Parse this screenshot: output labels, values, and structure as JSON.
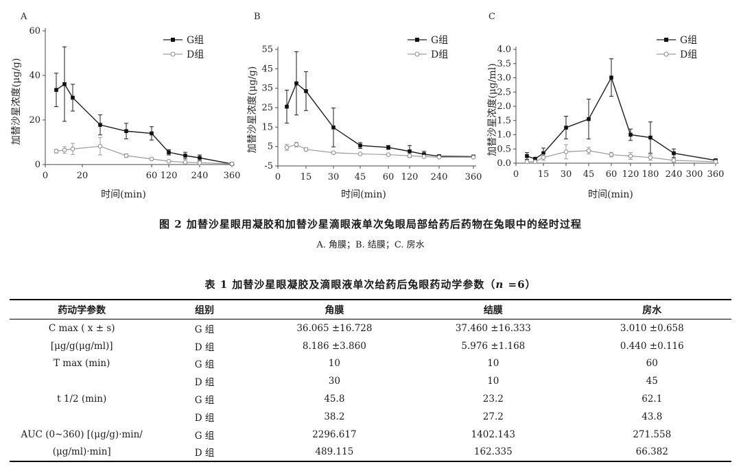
{
  "chart_data": [
    {
      "type": "line",
      "panel": "A",
      "ylabel": "加替沙星浓度(μg/g)",
      "xlabel": "时间(min)",
      "x_tick_labels": [
        "0",
        "20",
        "60",
        "120",
        "240",
        "360"
      ],
      "y_ticks": [
        0,
        20,
        40,
        60
      ],
      "ylim": [
        0,
        60
      ],
      "legend_position": "top-right",
      "series": [
        {
          "name": "G组",
          "marker": "filled-square",
          "points": [
            {
              "x": 5,
              "y": 33.5,
              "err": 7.5
            },
            {
              "x": 10,
              "y": 36.1,
              "err": 16.7
            },
            {
              "x": 15,
              "y": 30,
              "err": 6
            },
            {
              "x": 30,
              "y": 17.8,
              "err": 4.5
            },
            {
              "x": 45,
              "y": 15,
              "err": 3.5
            },
            {
              "x": 60,
              "y": 14,
              "err": 3
            },
            {
              "x": 120,
              "y": 5.5,
              "err": 1.2
            },
            {
              "x": 180,
              "y": 4,
              "err": 1.5
            },
            {
              "x": 240,
              "y": 3,
              "err": 1.3
            },
            {
              "x": 360,
              "y": 0.3,
              "err": 0
            }
          ]
        },
        {
          "name": "D组",
          "marker": "open-circle",
          "points": [
            {
              "x": 5,
              "y": 6,
              "err": 0.8
            },
            {
              "x": 10,
              "y": 6.5,
              "err": 1.5
            },
            {
              "x": 15,
              "y": 7,
              "err": 2.5
            },
            {
              "x": 30,
              "y": 8.2,
              "err": 3.9
            },
            {
              "x": 45,
              "y": 4,
              "err": 0.8
            },
            {
              "x": 60,
              "y": 2.5,
              "err": 0.5
            },
            {
              "x": 120,
              "y": 1.5,
              "err": 0.4
            },
            {
              "x": 180,
              "y": 1,
              "err": 0.4
            },
            {
              "x": 240,
              "y": 0.8,
              "err": 0.3
            },
            {
              "x": 360,
              "y": 0.3,
              "err": 0
            }
          ]
        }
      ]
    },
    {
      "type": "line",
      "panel": "B",
      "ylabel": "加替沙星浓度(μg/g)",
      "xlabel": "时间(min)",
      "x_tick_labels": [
        "0",
        "15",
        "30",
        "45",
        "60",
        "120",
        "240",
        "360"
      ],
      "y_ticks": [
        -5,
        5,
        15,
        25,
        35,
        45,
        55
      ],
      "ylim": [
        -5,
        55
      ],
      "legend_position": "top-right",
      "series": [
        {
          "name": "G组",
          "marker": "filled-square",
          "points": [
            {
              "x": 5,
              "y": 25.5,
              "err": 8.5
            },
            {
              "x": 10,
              "y": 37.5,
              "err": 16.3
            },
            {
              "x": 15,
              "y": 33.5,
              "err": 10
            },
            {
              "x": 30,
              "y": 14.8,
              "err": 10
            },
            {
              "x": 45,
              "y": 5.5,
              "err": 1.5
            },
            {
              "x": 60,
              "y": 4.5,
              "err": 1
            },
            {
              "x": 120,
              "y": 2.5,
              "err": 3
            },
            {
              "x": 180,
              "y": 1,
              "err": 1.5
            },
            {
              "x": 240,
              "y": 0,
              "err": 0.5
            },
            {
              "x": 360,
              "y": -0.2,
              "err": 0.3
            }
          ]
        },
        {
          "name": "D组",
          "marker": "open-circle",
          "points": [
            {
              "x": 5,
              "y": 4.5,
              "err": 1.5
            },
            {
              "x": 10,
              "y": 6,
              "err": 1.2
            },
            {
              "x": 15,
              "y": 3.5,
              "err": 0.8
            },
            {
              "x": 30,
              "y": 1.8,
              "err": 0.5
            },
            {
              "x": 45,
              "y": 1.2,
              "err": 0.4
            },
            {
              "x": 60,
              "y": 0.8,
              "err": 0.4
            },
            {
              "x": 120,
              "y": 0.2,
              "err": 0.3
            },
            {
              "x": 180,
              "y": -0.2,
              "err": 0.3
            },
            {
              "x": 240,
              "y": -0.5,
              "err": 0.2
            },
            {
              "x": 360,
              "y": -0.5,
              "err": 0.2
            }
          ]
        }
      ]
    },
    {
      "type": "line",
      "panel": "C",
      "ylabel": "加替沙星浓度(μg/ml)",
      "xlabel": "时间(min)",
      "x_tick_labels": [
        "0",
        "15",
        "30",
        "45",
        "60",
        "120",
        "180",
        "240",
        "300",
        "360"
      ],
      "y_ticks": [
        0,
        0.5,
        1.0,
        1.5,
        2.0,
        2.5,
        3.0,
        3.5,
        4.0
      ],
      "y_tick_labels": [
        "0.0",
        "0.5",
        "1.0",
        "1.5",
        "2.0",
        "2.5",
        "3.0",
        "3.5",
        "4.0"
      ],
      "ylim": [
        0,
        4
      ],
      "legend_position": "top-right",
      "series": [
        {
          "name": "G组",
          "marker": "filled-square",
          "points": [
            {
              "x": 5,
              "y": 0.25,
              "err": 0.12
            },
            {
              "x": 10,
              "y": 0.15,
              "err": 0.06
            },
            {
              "x": 15,
              "y": 0.35,
              "err": 0.18
            },
            {
              "x": 30,
              "y": 1.25,
              "err": 0.4
            },
            {
              "x": 45,
              "y": 1.55,
              "err": 0.7
            },
            {
              "x": 60,
              "y": 3.01,
              "err": 0.658
            },
            {
              "x": 120,
              "y": 1.0,
              "err": 0.2
            },
            {
              "x": 180,
              "y": 0.9,
              "err": 0.55
            },
            {
              "x": 240,
              "y": 0.35,
              "err": 0.15
            },
            {
              "x": 360,
              "y": 0.1,
              "err": 0.03
            }
          ]
        },
        {
          "name": "D组",
          "marker": "open-circle",
          "points": [
            {
              "x": 5,
              "y": 0.05,
              "err": 0.05
            },
            {
              "x": 10,
              "y": 0.05,
              "err": 0.04
            },
            {
              "x": 15,
              "y": 0.2,
              "err": 0.1
            },
            {
              "x": 30,
              "y": 0.4,
              "err": 0.25
            },
            {
              "x": 45,
              "y": 0.44,
              "err": 0.116
            },
            {
              "x": 60,
              "y": 0.3,
              "err": 0.08
            },
            {
              "x": 120,
              "y": 0.25,
              "err": 0.12
            },
            {
              "x": 180,
              "y": 0.2,
              "err": 0.1
            },
            {
              "x": 240,
              "y": 0.1,
              "err": 0.06
            },
            {
              "x": 360,
              "y": 0.05,
              "err": 0.03
            }
          ]
        }
      ]
    }
  ],
  "figure": {
    "caption": "图 2   加替沙星眼用凝胶和加替沙星滴眼液单次兔眼局部给药后药物在兔眼中的经时过程",
    "subcaption": "A. 角膜；B. 结膜；C. 房水"
  },
  "table": {
    "title_prefix": "表 1   加替沙星眼凝胶及滴眼液单次给药后兔眼药动学参数（",
    "title_n": "n",
    "title_suffix": " =6）",
    "headers": [
      "药动学参数",
      "组别",
      "角膜",
      "结膜",
      "房水"
    ],
    "rows": [
      [
        "C max ( x ± s)",
        "G 组",
        "36.065 ±16.728",
        "37.460 ±16.333",
        "3.010 ±0.658"
      ],
      [
        "[μg/g(μg/ml)]",
        "D 组",
        "8.186 ±3.860",
        "5.976  ±1.168",
        "0.440 ±0.116"
      ],
      [
        "T max (min)",
        "G 组",
        "10",
        "10",
        "60"
      ],
      [
        "",
        "D 组",
        "30",
        "10",
        "45"
      ],
      [
        "t 1/2 (min)",
        "G 组",
        "45.8",
        "23.2",
        "62.1"
      ],
      [
        "",
        "D 组",
        "38.2",
        "27.2",
        "43.8"
      ],
      [
        "AUC (0~360) [(μg/g)·min/",
        "G 组",
        "2296.617",
        "1402.143",
        "271.558"
      ],
      [
        "(μg/ml)·min]",
        "D 组",
        "489.115",
        "162.335",
        "66.382"
      ]
    ]
  }
}
